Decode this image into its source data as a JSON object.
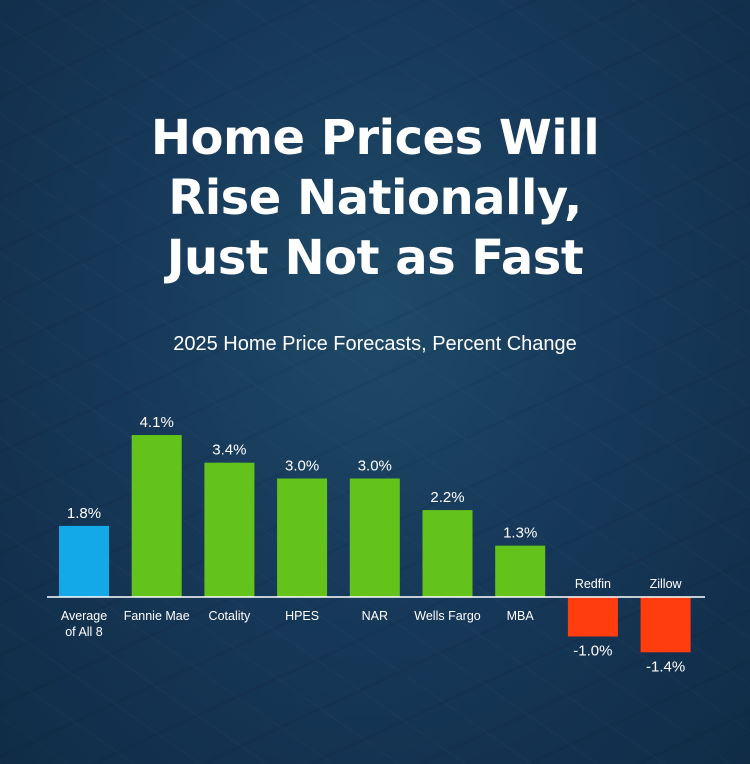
{
  "title_lines": [
    "Home Prices Will",
    "Rise Nationally,",
    "Just Not as Fast"
  ],
  "subtitle": "2025 Home Price Forecasts, Percent Change",
  "colors": {
    "average": "#13a8e8",
    "positive": "#64c31a",
    "negative": "#ff3d0f",
    "axis": "#ffffff",
    "text": "#ffffff"
  },
  "chart_data": {
    "type": "bar",
    "title": "2025 Home Price Forecasts, Percent Change",
    "categories": [
      "Average of All 8",
      "Fannie Mae",
      "Cotality",
      "HPES",
      "NAR",
      "Wells Fargo",
      "MBA",
      "Redfin",
      "Zillow"
    ],
    "category_lines": [
      [
        "Average",
        "of All 8"
      ],
      [
        "Fannie Mae"
      ],
      [
        "Cotality"
      ],
      [
        "HPES"
      ],
      [
        "NAR"
      ],
      [
        "Wells Fargo"
      ],
      [
        "MBA"
      ],
      [
        "Redfin"
      ],
      [
        "Zillow"
      ]
    ],
    "values": [
      1.8,
      4.1,
      3.4,
      3.0,
      3.0,
      2.2,
      1.3,
      -1.0,
      -1.4
    ],
    "value_labels": [
      "1.8%",
      "4.1%",
      "3.4%",
      "3.0%",
      "3.0%",
      "2.2%",
      "1.3%",
      "-1.0%",
      "-1.4%"
    ],
    "bar_kinds": [
      "average",
      "positive",
      "positive",
      "positive",
      "positive",
      "positive",
      "positive",
      "negative",
      "negative"
    ],
    "ylim": [
      -1.5,
      4.5
    ],
    "grid": false,
    "legend": "none"
  }
}
